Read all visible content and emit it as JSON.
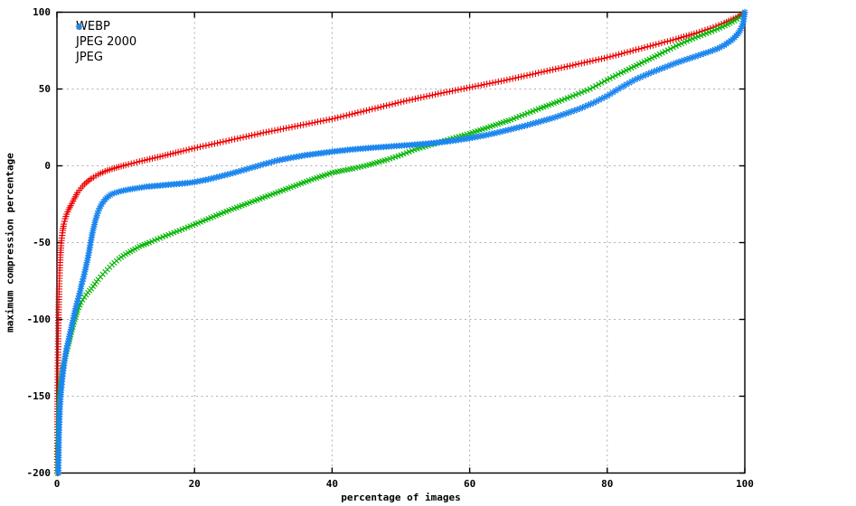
{
  "chart_data": {
    "type": "scatter",
    "title": "",
    "xlabel": "percentage of images",
    "ylabel": "maximum compression percentage",
    "xlim": [
      0,
      100
    ],
    "ylim": [
      -200,
      100
    ],
    "xticks": [
      0,
      20,
      40,
      60,
      80,
      100
    ],
    "yticks": [
      100,
      50,
      0,
      -50,
      -100,
      -150,
      -200
    ],
    "grid": "dashed",
    "legend_position": "top-left-inside",
    "series": [
      {
        "name": "WEBP",
        "marker": "plus",
        "color": "#ee0000",
        "points": [
          [
            0.05,
            -200
          ],
          [
            0.07,
            -170
          ],
          [
            0.1,
            -150
          ],
          [
            0.13,
            -132
          ],
          [
            0.17,
            -116
          ],
          [
            0.2,
            -104
          ],
          [
            0.25,
            -92
          ],
          [
            0.3,
            -82
          ],
          [
            0.4,
            -68
          ],
          [
            0.5,
            -58
          ],
          [
            0.6,
            -52
          ],
          [
            0.7,
            -47
          ],
          [
            0.85,
            -42
          ],
          [
            1,
            -38
          ],
          [
            1.2,
            -34.5
          ],
          [
            1.4,
            -31.5
          ],
          [
            1.7,
            -28.5
          ],
          [
            2,
            -26
          ],
          [
            2.5,
            -21.5
          ],
          [
            3,
            -17.5
          ],
          [
            3.5,
            -14.5
          ],
          [
            4,
            -12
          ],
          [
            4.5,
            -10
          ],
          [
            5,
            -8.3
          ],
          [
            6,
            -5.6
          ],
          [
            7,
            -3.6
          ],
          [
            8,
            -2
          ],
          [
            9,
            -0.7
          ],
          [
            10,
            0.5
          ],
          [
            12,
            2.8
          ],
          [
            15,
            6
          ],
          [
            18,
            9.3
          ],
          [
            20,
            11.5
          ],
          [
            25,
            16.5
          ],
          [
            30,
            21.5
          ],
          [
            35,
            26
          ],
          [
            40,
            30.5
          ],
          [
            45,
            36
          ],
          [
            50,
            41.5
          ],
          [
            55,
            46.5
          ],
          [
            60,
            51
          ],
          [
            65,
            55.5
          ],
          [
            70,
            60.5
          ],
          [
            75,
            65.5
          ],
          [
            80,
            70.5
          ],
          [
            85,
            76.5
          ],
          [
            90,
            82.5
          ],
          [
            93,
            86.5
          ],
          [
            95,
            89.5
          ],
          [
            97,
            93
          ],
          [
            98,
            95
          ],
          [
            99,
            97
          ],
          [
            99.5,
            98.5
          ],
          [
            100,
            100
          ]
        ]
      },
      {
        "name": "JPEG 2000",
        "marker": "cross",
        "color": "#00b400",
        "points": [
          [
            0.1,
            -200
          ],
          [
            0.15,
            -180
          ],
          [
            0.2,
            -168
          ],
          [
            0.3,
            -156
          ],
          [
            0.4,
            -148
          ],
          [
            0.5,
            -143
          ],
          [
            0.7,
            -136
          ],
          [
            0.9,
            -131
          ],
          [
            1.1,
            -127
          ],
          [
            1.4,
            -121
          ],
          [
            1.7,
            -116
          ],
          [
            2,
            -110
          ],
          [
            2.3,
            -105
          ],
          [
            2.6,
            -100
          ],
          [
            3,
            -94
          ],
          [
            3.5,
            -89
          ],
          [
            4,
            -85.5
          ],
          [
            4.5,
            -82.5
          ],
          [
            5,
            -80
          ],
          [
            6,
            -74
          ],
          [
            7,
            -69
          ],
          [
            8,
            -64.5
          ],
          [
            9,
            -60.5
          ],
          [
            10,
            -57.5
          ],
          [
            11,
            -55
          ],
          [
            12,
            -52.5
          ],
          [
            13.4,
            -50
          ],
          [
            15,
            -47
          ],
          [
            17,
            -43.5
          ],
          [
            19,
            -40
          ],
          [
            22,
            -34.5
          ],
          [
            25,
            -29
          ],
          [
            28,
            -24
          ],
          [
            31,
            -19
          ],
          [
            34,
            -14
          ],
          [
            37,
            -9
          ],
          [
            40,
            -4.5
          ],
          [
            43,
            -1.8
          ],
          [
            45,
            0.2
          ],
          [
            48,
            4
          ],
          [
            50,
            7
          ],
          [
            52,
            10.5
          ],
          [
            54,
            13.2
          ],
          [
            56,
            15.8
          ],
          [
            58,
            18.5
          ],
          [
            60,
            21
          ],
          [
            63,
            25.5
          ],
          [
            66,
            30
          ],
          [
            70,
            37
          ],
          [
            73,
            42
          ],
          [
            75,
            45.5
          ],
          [
            77.5,
            50
          ],
          [
            80,
            56
          ],
          [
            82,
            60.5
          ],
          [
            85,
            67
          ],
          [
            88,
            73.5
          ],
          [
            90,
            78
          ],
          [
            92,
            82
          ],
          [
            94,
            85.5
          ],
          [
            96,
            89
          ],
          [
            97.5,
            92
          ],
          [
            98.5,
            94.5
          ],
          [
            99.2,
            96.5
          ],
          [
            100,
            100
          ]
        ]
      },
      {
        "name": "JPEG",
        "marker": "asterisk",
        "color": "#1c86ee",
        "points": [
          [
            0.2,
            -200
          ],
          [
            0.25,
            -185
          ],
          [
            0.3,
            -172
          ],
          [
            0.4,
            -160
          ],
          [
            0.5,
            -152
          ],
          [
            0.6,
            -146
          ],
          [
            0.8,
            -137
          ],
          [
            1,
            -130
          ],
          [
            1.2,
            -124
          ],
          [
            1.5,
            -117
          ],
          [
            1.8,
            -111
          ],
          [
            2.1,
            -105
          ],
          [
            2.4,
            -99
          ],
          [
            2.7,
            -93
          ],
          [
            3,
            -88
          ],
          [
            3.3,
            -83
          ],
          [
            3.6,
            -77
          ],
          [
            3.9,
            -72
          ],
          [
            4.2,
            -66
          ],
          [
            4.5,
            -60
          ],
          [
            4.7,
            -55
          ],
          [
            4.9,
            -50
          ],
          [
            5.1,
            -45
          ],
          [
            5.3,
            -41
          ],
          [
            5.6,
            -35.5
          ],
          [
            5.9,
            -31
          ],
          [
            6.2,
            -27.5
          ],
          [
            6.5,
            -25
          ],
          [
            7,
            -21.8
          ],
          [
            7.5,
            -19.8
          ],
          [
            8,
            -18.3
          ],
          [
            9,
            -16.8
          ],
          [
            10,
            -15.8
          ],
          [
            11,
            -15
          ],
          [
            12,
            -14.3
          ],
          [
            13,
            -13.6
          ],
          [
            15,
            -12.8
          ],
          [
            17,
            -12
          ],
          [
            19,
            -11.2
          ],
          [
            20,
            -10.6
          ],
          [
            22,
            -8.8
          ],
          [
            24,
            -6.6
          ],
          [
            26,
            -4.2
          ],
          [
            28,
            -1.6
          ],
          [
            30,
            1
          ],
          [
            32,
            3.4
          ],
          [
            34,
            5.2
          ],
          [
            36,
            6.8
          ],
          [
            38,
            8
          ],
          [
            40,
            9.2
          ],
          [
            43,
            10.7
          ],
          [
            46,
            11.8
          ],
          [
            49,
            12.8
          ],
          [
            52,
            13.8
          ],
          [
            54,
            14.5
          ],
          [
            56,
            15.4
          ],
          [
            58,
            16.6
          ],
          [
            60,
            18
          ],
          [
            62,
            19.6
          ],
          [
            64,
            21.6
          ],
          [
            66,
            23.8
          ],
          [
            68,
            26
          ],
          [
            70,
            28.5
          ],
          [
            72,
            31
          ],
          [
            74,
            34
          ],
          [
            76,
            37.2
          ],
          [
            78,
            41
          ],
          [
            80,
            45.5
          ],
          [
            82,
            51
          ],
          [
            84,
            56
          ],
          [
            86,
            60
          ],
          [
            88,
            63.5
          ],
          [
            90,
            67
          ],
          [
            92,
            70
          ],
          [
            94,
            73
          ],
          [
            95,
            74.5
          ],
          [
            96,
            76.2
          ],
          [
            97,
            78.5
          ],
          [
            98,
            81.5
          ],
          [
            98.5,
            83.5
          ],
          [
            99,
            86
          ],
          [
            99.3,
            88
          ],
          [
            99.6,
            91
          ],
          [
            99.8,
            94
          ],
          [
            100,
            100
          ]
        ]
      }
    ]
  },
  "colors": {
    "background": "#ffffff",
    "axis": "#000000",
    "grid": "#b0b0b0",
    "tick_text": "#000000"
  }
}
